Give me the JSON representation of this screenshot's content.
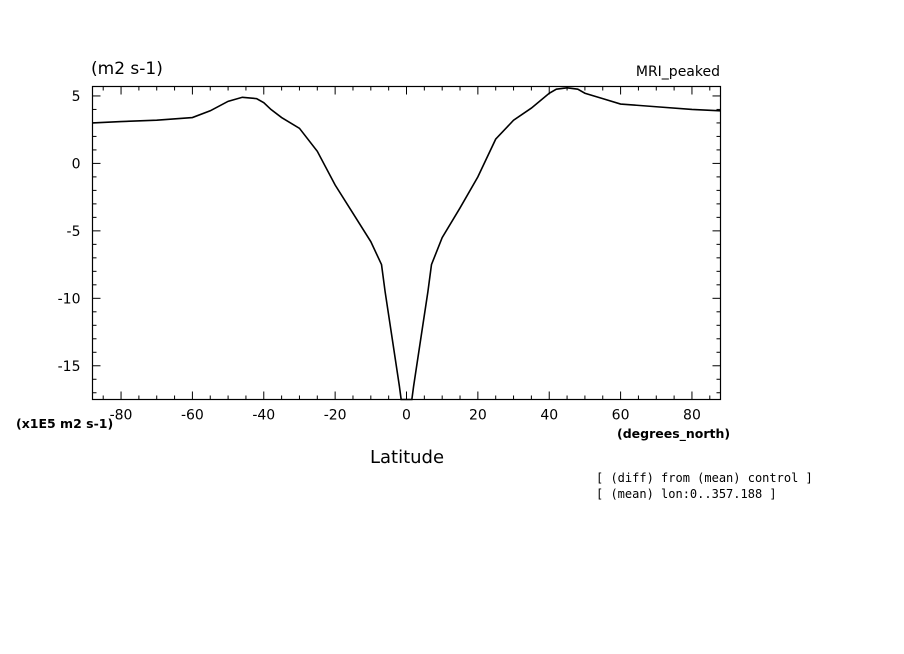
{
  "chart_data": {
    "type": "line",
    "title_left": "(m2 s-1)",
    "title_right": "MRI_peaked",
    "xlabel": "Latitude",
    "x_unit_label": "(degrees_north)",
    "y_scale_label": "(x1E5 m2 s-1)",
    "xlim": [
      -88,
      88
    ],
    "ylim": [
      -17.5,
      5.7
    ],
    "x_ticks": [
      -80,
      -60,
      -40,
      -20,
      0,
      20,
      40,
      60,
      80
    ],
    "x_tick_labels": [
      "-80",
      "-60",
      "-40",
      "-20",
      "0",
      "20",
      "40",
      "60",
      "80"
    ],
    "y_ticks": [
      5,
      0,
      -5,
      -10,
      -15
    ],
    "y_tick_labels": [
      "5",
      "0",
      "-5",
      "-10",
      "-15"
    ],
    "grid": false,
    "legend": "none",
    "line_color": "#000000",
    "series": [
      {
        "x": [
          -88,
          -80,
          -70,
          -60,
          -55,
          -50,
          -46,
          -42,
          -40,
          -38,
          -35,
          -30,
          -25,
          -20,
          -15,
          -10,
          -7,
          -6,
          -4,
          -2,
          -1.5,
          1.5,
          2,
          4,
          6,
          7,
          10,
          15,
          20,
          25,
          30,
          35,
          40,
          42,
          45,
          48,
          50,
          55,
          60,
          70,
          80,
          88
        ],
        "y": [
          3.0,
          3.1,
          3.2,
          3.4,
          3.9,
          4.6,
          4.9,
          4.8,
          4.5,
          4.0,
          3.4,
          2.6,
          0.9,
          -1.6,
          -3.7,
          -5.8,
          -7.5,
          -9.5,
          -13.0,
          -16.5,
          -17.5,
          -17.5,
          -16.5,
          -13.0,
          -9.5,
          -7.5,
          -5.5,
          -3.3,
          -1.0,
          1.8,
          3.2,
          4.1,
          5.2,
          5.5,
          5.6,
          5.5,
          5.2,
          4.8,
          4.4,
          4.2,
          4.0,
          3.9
        ]
      }
    ],
    "annotations": [
      "[ (diff) from (mean) control ]",
      "[ (mean) lon:0..357.188 ]"
    ]
  }
}
